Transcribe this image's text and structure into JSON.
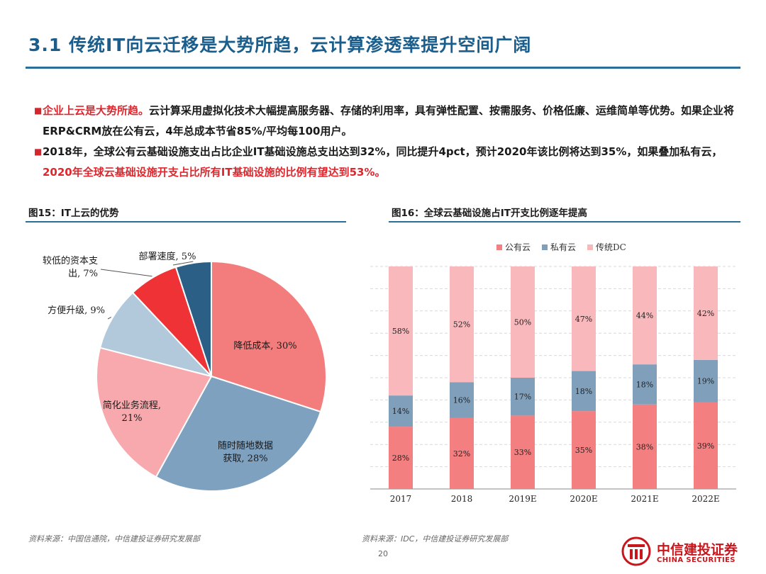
{
  "page": {
    "title": "3.1 传统IT向云迁移是大势所趋，云计算渗透率提升空间广阔",
    "bullets": [
      {
        "marker": "■",
        "emphasis": "企业上云是大势所趋。",
        "text": "云计算采用虚拟化技术大幅提高服务器、存储的利用率，具有弹性配置、按需服务、价格低廉、运维简单等优势。如果企业将ERP&CRM放在公有云，4年总成本节省85%/平均每100用户。",
        "highlight": ""
      },
      {
        "marker": "■",
        "emphasis": "",
        "text": "2018年，全球公有云基础设施支出占比企业IT基础设施总支出达到32%，同比提升4pct，预计2020年该比例将达到35%，如果叠加私有云，",
        "highlight": "2020年全球云基础设施开支占比所有IT基础设施的比例有望达到53%。"
      }
    ],
    "fig15_title": "图15：IT上云的优势",
    "fig16_title": "图16：全球云基础设施占IT开支比例逐年提高",
    "source_left": "资料来源：中国信通院，中信建投证券研究发展部",
    "source_right": "资料来源：IDC，中信建投证券研究发展部",
    "page_number": "20",
    "logo": {
      "cn": "中信建投证券",
      "en": "CHINA SECURITIES"
    }
  },
  "chart_data": [
    {
      "type": "pie",
      "title": "",
      "slices": [
        {
          "label": "降低成本, 30%",
          "value": 30,
          "color": "#f37d7d"
        },
        {
          "label": "随时随地数据\n获取, 28%",
          "value": 28,
          "color": "#7da1bf"
        },
        {
          "label": "简化业务流程,\n21%",
          "value": 21,
          "color": "#f8a9ad"
        },
        {
          "label": "方便升级, 9%",
          "value": 9,
          "color": "#b1c9da"
        },
        {
          "label": "较低的资本支\n出, 7%",
          "value": 7,
          "color": "#ee3235"
        },
        {
          "label": "部署速度, 5%",
          "value": 5,
          "color": "#2c5f86"
        }
      ]
    },
    {
      "type": "bar",
      "stacked": true,
      "title": "",
      "categories": [
        "2017",
        "2018",
        "2019E",
        "2020E",
        "2021E",
        "2022E"
      ],
      "series": [
        {
          "name": "公有云",
          "values": [
            28,
            32,
            33,
            35,
            38,
            39
          ],
          "labels": [
            "28%",
            "32%",
            "33%",
            "35%",
            "38%",
            "39%"
          ],
          "color": "#f37f80"
        },
        {
          "name": "私有云",
          "values": [
            14,
            16,
            17,
            18,
            18,
            19
          ],
          "labels": [
            "14%",
            "16%",
            "17%",
            "18%",
            "18%",
            "19%"
          ],
          "color": "#7f9fba"
        },
        {
          "name": "传统DC",
          "values": [
            58,
            52,
            50,
            47,
            44,
            42
          ],
          "labels": [
            "58%",
            "52%",
            "50%",
            "47%",
            "44%",
            "42%"
          ],
          "color": "#f8b8bc"
        }
      ],
      "ylim": [
        0,
        100
      ],
      "grid": true,
      "legend": "top"
    }
  ]
}
